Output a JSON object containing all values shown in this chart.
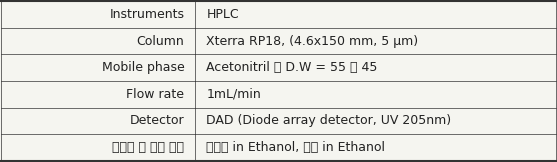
{
  "rows": [
    [
      "Instruments",
      "HPLC"
    ],
    [
      "Column",
      "Xterra RP18, (4.6x150 mm, 5 μm)"
    ],
    [
      "Mobile phase",
      "Acetonitril ： D.W = 55 ： 45"
    ],
    [
      "Flow rate",
      "1mL/min"
    ],
    [
      "Detector",
      "DAD (Diode array detector, UV 205nm)"
    ],
    [
      "표준액 및 검액 조제",
      "표준액 in Ethanol, 검액 in Ethanol"
    ]
  ],
  "col_split": 0.35,
  "background_color": "#f5f5f0",
  "border_color": "#333333",
  "text_color": "#222222",
  "font_size": 9,
  "figsize": [
    5.57,
    1.62
  ],
  "dpi": 100
}
